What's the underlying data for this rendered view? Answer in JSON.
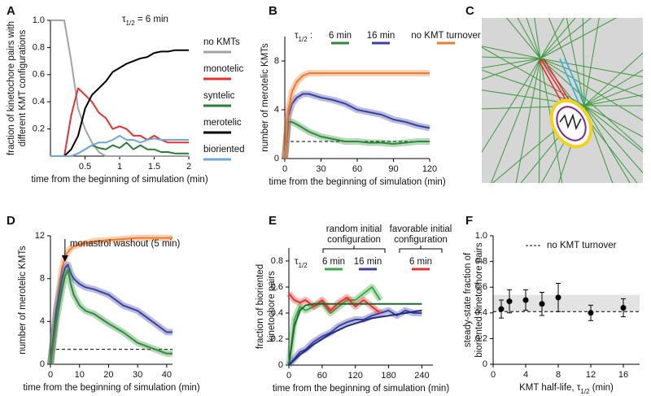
{
  "image_panel": {
    "label": "C"
  },
  "chart_data": [
    {
      "label": "A",
      "type": "line",
      "legend": "right",
      "annotation": [
        "τ",
        "1/2",
        " = 6 min"
      ],
      "xlabel": "time from the beginning of simulation (min)",
      "ylabel": [
        "fraction of kinetochore pairs with",
        "different KMT configurations"
      ],
      "x": [
        0,
        0.1,
        0.2,
        0.3,
        0.4,
        0.5,
        0.6,
        0.7,
        0.8,
        0.9,
        1.0,
        1.1,
        1.2,
        1.3,
        1.4,
        1.5,
        1.6,
        1.7,
        1.8,
        1.9,
        2.0
      ],
      "series": [
        {
          "name": "no KMTs",
          "color": "#a3a3a3",
          "values": [
            1,
            1,
            1,
            0.7,
            0.35,
            0.2,
            0.1,
            0.03,
            0,
            0,
            0,
            0,
            0,
            0,
            0,
            0,
            0,
            0,
            0,
            0,
            0
          ]
        },
        {
          "name": "monotelic",
          "color": "#e8312f",
          "values": [
            0,
            0,
            0,
            0.3,
            0.5,
            0.45,
            0.4,
            0.32,
            0.28,
            0.2,
            0.22,
            0.2,
            0.15,
            0.15,
            0.12,
            0.15,
            0.12,
            0.1,
            0.1,
            0.1,
            0.1
          ]
        },
        {
          "name": "syntelic",
          "color": "#2a7d34",
          "values": [
            0,
            0,
            0,
            0,
            0.02,
            0.05,
            0.08,
            0.06,
            0.05,
            0.08,
            0.06,
            0.1,
            0.05,
            0.08,
            0.05,
            0.05,
            0.03,
            0.03,
            0.02,
            0.02,
            0.02
          ]
        },
        {
          "name": "merotelic",
          "color": "#000000",
          "values": [
            0,
            0,
            0,
            0.05,
            0.15,
            0.35,
            0.45,
            0.5,
            0.55,
            0.62,
            0.65,
            0.68,
            0.7,
            0.72,
            0.73,
            0.76,
            0.77,
            0.77,
            0.78,
            0.78,
            0.78
          ]
        },
        {
          "name": "bioriented",
          "color": "#6fa8dc",
          "values": [
            0,
            0,
            0,
            0,
            0.02,
            0.05,
            0.08,
            0.1,
            0.1,
            0.12,
            0.15,
            0.12,
            0.12,
            0.1,
            0.12,
            0.13,
            0.12,
            0.12,
            0.12,
            0.12,
            0.12
          ]
        }
      ],
      "xlim": [
        0,
        2
      ],
      "ylim": [
        0,
        1
      ],
      "xticks": [
        0.5,
        1,
        1.5,
        2
      ],
      "yticks": [
        0.2,
        0.4,
        0.6,
        0.8,
        {
          "value": 1,
          "label": "1.0"
        }
      ]
    },
    {
      "label": "B",
      "type": "line",
      "legend": "top",
      "bands": true,
      "legend_title": [
        "τ",
        "1/2",
        " :"
      ],
      "xlabel": "time from the beginning of simulation (min)",
      "ylabel": "number of merotelic KMTs",
      "x": [
        0,
        3,
        6,
        10,
        15,
        20,
        30,
        40,
        50,
        60,
        70,
        80,
        90,
        100,
        110,
        120
      ],
      "series": [
        {
          "name": "6 min",
          "color": "#2e8b3a",
          "values": [
            0,
            3,
            3,
            2.8,
            2.5,
            2.2,
            1.8,
            1.6,
            1.4,
            1.4,
            1.3,
            1.3,
            1.2,
            1.3,
            1.4,
            1.4
          ]
        },
        {
          "name": "16 min",
          "color": "#3a3fa0",
          "values": [
            0,
            3.5,
            4.5,
            5,
            5.3,
            5.3,
            5,
            4.8,
            4.5,
            4,
            3.8,
            3.6,
            3.2,
            3,
            2.7,
            2.5
          ]
        },
        {
          "name": "no KMT turnover",
          "color": "#f07a2a",
          "values": [
            0,
            4,
            5.5,
            6.3,
            6.8,
            7,
            7,
            7,
            7,
            7,
            7,
            7,
            7,
            7,
            7,
            7
          ]
        }
      ],
      "reference_line": 1.4,
      "xlim": [
        0,
        120
      ],
      "ylim": [
        0,
        10
      ],
      "xticks": [
        0,
        30,
        60,
        90,
        120
      ],
      "yticks": [
        0,
        4,
        8
      ]
    },
    {
      "label": "D",
      "type": "line",
      "bands": true,
      "annotation": "monastrol washout (5 min)",
      "annotation_x": 5,
      "xlabel": "time from the beginning of simulation (min)",
      "ylabel": "number of merotelic KMTs",
      "x": [
        0,
        2,
        4,
        5,
        6,
        7,
        8,
        10,
        12,
        15,
        20,
        25,
        30,
        35,
        40,
        42
      ],
      "series": [
        {
          "color": "#f07a2a",
          "values": [
            0,
            5,
            9,
            10,
            10.5,
            10.8,
            11,
            11.2,
            11.3,
            11.5,
            11.6,
            11.7,
            11.8,
            11.8,
            11.8,
            11.8
          ]
        },
        {
          "color": "#3a3fa0",
          "values": [
            0,
            5,
            8,
            9,
            9.3,
            8.5,
            8,
            7.5,
            7.2,
            7,
            6.5,
            5.5,
            5,
            4,
            3,
            3
          ]
        },
        {
          "color": "#2e8b3a",
          "values": [
            0,
            4,
            7,
            8.2,
            8.8,
            7.5,
            6.5,
            5.5,
            5,
            4.7,
            3.8,
            3,
            2,
            1.5,
            1,
            1
          ]
        }
      ],
      "reference_line": 1.4,
      "xlim": [
        0,
        42
      ],
      "ylim": [
        0,
        12
      ],
      "xticks": [
        0,
        10,
        20,
        30,
        40
      ],
      "yticks": [
        0,
        4,
        8,
        12
      ]
    },
    {
      "label": "E",
      "type": "line",
      "legend": "groups",
      "bands": true,
      "legend_title": [
        "τ",
        "1/2"
      ],
      "groups": [
        [
          "random initial",
          "configuration"
        ],
        [
          "favorable initial",
          "configuration"
        ]
      ],
      "xlabel": "time from the beginning of simulation (min)",
      "ylabel": [
        "fraction of bioriented",
        "kinetochore pairs"
      ],
      "x": [
        0,
        10,
        20,
        30,
        45,
        60,
        75,
        90,
        105,
        120,
        135,
        150,
        165,
        180,
        195,
        210,
        225,
        240
      ],
      "series": [
        {
          "name": "6 min",
          "group": 0,
          "color": "#3aa845",
          "values": [
            0,
            0.35,
            0.45,
            0.42,
            0.45,
            0.48,
            0.4,
            0.45,
            0.5,
            0.5,
            0.55,
            0.6,
            0.5,
            null,
            null,
            null,
            null,
            null
          ]
        },
        {
          "name": "16 min",
          "group": 0,
          "color": "#3a3fa0",
          "values": [
            0,
            0.05,
            0.1,
            0.12,
            0.18,
            0.22,
            0.25,
            0.3,
            0.33,
            0.35,
            0.35,
            0.38,
            0.4,
            0.42,
            0.38,
            0.42,
            0.4,
            0.4
          ]
        },
        {
          "name": "6 min",
          "group": 1,
          "color": "#e8312f",
          "values": [
            0.55,
            0.5,
            0.48,
            0.5,
            0.45,
            0.5,
            0.42,
            0.48,
            0.52,
            0.45,
            0.5,
            0.45,
            0.4,
            null,
            null,
            null,
            null,
            null
          ]
        }
      ],
      "fit_curves": [
        {
          "color": "#1b6b2a",
          "values": [
            0,
            0.3,
            0.42,
            0.46,
            0.47,
            0.47,
            0.47,
            0.47,
            0.47,
            0.47,
            0.47,
            0.47,
            0.47,
            0.47,
            0.47,
            0.47,
            0.47,
            0.47
          ]
        },
        {
          "color": "#1f2a8a",
          "values": [
            0,
            0.04,
            0.08,
            0.11,
            0.16,
            0.2,
            0.24,
            0.27,
            0.3,
            0.32,
            0.34,
            0.36,
            0.37,
            0.38,
            0.39,
            0.4,
            0.41,
            0.42
          ]
        }
      ],
      "xlim": [
        0,
        260
      ],
      "ylim": [
        0,
        0.9
      ],
      "xticks": [
        0,
        60,
        120,
        180,
        240
      ],
      "yticks": [
        0,
        0.2,
        0.4,
        0.6,
        0.8
      ]
    },
    {
      "label": "F",
      "type": "scatter",
      "color": "#000000",
      "xlabel": [
        "KMT half-life, τ",
        "1/2",
        " (min)"
      ],
      "ylabel": [
        "steady-state fraction of",
        "bioriented kinetochore pairs"
      ],
      "x": [
        1,
        2,
        4,
        6,
        8,
        12,
        16
      ],
      "values": [
        0.43,
        0.49,
        0.5,
        0.47,
        0.52,
        0.4,
        0.44
      ],
      "errors": [
        0.07,
        0.09,
        0.08,
        0.09,
        0.11,
        0.06,
        0.07
      ],
      "reference_line": 0.41,
      "reference_label": "no KMT turnover",
      "band": [
        0.41,
        0.54
      ],
      "xlim": [
        0,
        18
      ],
      "ylim": [
        0,
        1
      ],
      "xticks": [
        0,
        4,
        8,
        12,
        16
      ],
      "yticks": [
        0,
        0.2,
        0.4,
        0.6,
        0.8,
        {
          "value": 1,
          "label": "1.0"
        }
      ]
    }
  ]
}
